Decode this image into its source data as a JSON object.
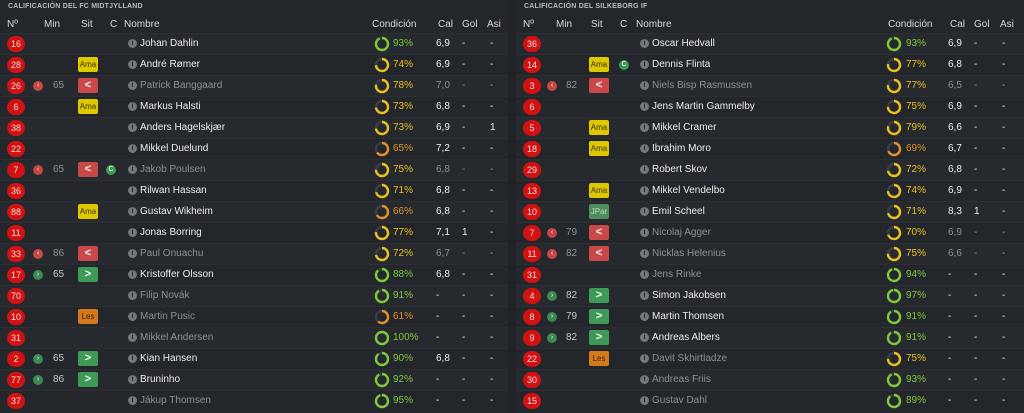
{
  "headers": {
    "num": "Nº",
    "min": "Min",
    "sit": "Sit",
    "c": "C",
    "name": "Nombre",
    "cond": "Condición",
    "cal": "Cal",
    "gol": "Gol",
    "asi": "Asi"
  },
  "colors": {
    "green": "#7ec83c",
    "yellow": "#e8c020",
    "orange": "#e09030",
    "red": "#d11212"
  },
  "teams": [
    {
      "title": "CALIFICACIÓN DEL FC MIDTJYLLAND",
      "players": [
        {
          "num": "16",
          "name": "Johan Dahlin",
          "cond": "93%",
          "level": 93,
          "cal": "6,9",
          "gol": "-",
          "asi": "-",
          "row": "normal"
        },
        {
          "num": "28",
          "sit": "Ama",
          "sit_type": "ama",
          "name": "André Rømer",
          "cond": "74%",
          "level": 74,
          "cal": "6,9",
          "gol": "-",
          "asi": "-",
          "row": "normal"
        },
        {
          "num": "26",
          "sub": "out",
          "min": "65",
          "sit": "<",
          "sit_type": "out",
          "name": "Patrick Banggaard",
          "cond": "78%",
          "level": 78,
          "cal": "7,0",
          "gol": "-",
          "asi": "-",
          "row": "sub"
        },
        {
          "num": "6",
          "sit": "Ama",
          "sit_type": "ama",
          "name": "Markus Halsti",
          "cond": "73%",
          "level": 73,
          "cal": "6,8",
          "gol": "-",
          "asi": "-",
          "row": "normal"
        },
        {
          "num": "38",
          "name": "Anders Hagelskjær",
          "cond": "73%",
          "level": 73,
          "cal": "6,9",
          "gol": "-",
          "asi": "1",
          "row": "normal"
        },
        {
          "num": "22",
          "name": "Mikkel Duelund",
          "cond": "65%",
          "level": 65,
          "cal": "7,2",
          "gol": "-",
          "asi": "-",
          "row": "normal"
        },
        {
          "num": "7",
          "sub": "out",
          "min": "65",
          "sit": "<",
          "sit_type": "out",
          "captain": "C",
          "name": "Jakob Poulsen",
          "cond": "75%",
          "level": 75,
          "cal": "6,8",
          "gol": "-",
          "asi": "-",
          "row": "sub"
        },
        {
          "num": "36",
          "name": "Rilwan Hassan",
          "cond": "71%",
          "level": 71,
          "cal": "6,8",
          "gol": "-",
          "asi": "-",
          "row": "normal"
        },
        {
          "num": "88",
          "sit": "Ama",
          "sit_type": "ama",
          "name": "Gustav Wikheim",
          "cond": "66%",
          "level": 66,
          "cal": "6,8",
          "gol": "-",
          "asi": "-",
          "row": "normal"
        },
        {
          "num": "11",
          "name": "Jonas Borring",
          "cond": "77%",
          "level": 77,
          "cal": "7,1",
          "gol": "1",
          "asi": "-",
          "row": "normal"
        },
        {
          "num": "33",
          "sub": "out",
          "min": "86",
          "sit": "<",
          "sit_type": "out",
          "name": "Paul Onuachu",
          "cond": "72%",
          "level": 72,
          "cal": "6,7",
          "gol": "-",
          "asi": "-",
          "row": "sub"
        },
        {
          "num": "17",
          "sub": "in",
          "min": "65",
          "sit": ">",
          "sit_type": "in",
          "name": "Kristoffer Olsson",
          "cond": "88%",
          "level": 88,
          "cal": "6,8",
          "gol": "-",
          "asi": "-",
          "row": "normal"
        },
        {
          "num": "70",
          "name": "Filip Novák",
          "cond": "91%",
          "level": 91,
          "cal": "-",
          "gol": "-",
          "asi": "-",
          "row": "bench"
        },
        {
          "num": "10",
          "sit": "Les",
          "sit_type": "les",
          "name": "Martin Pusic",
          "cond": "61%",
          "level": 61,
          "cal": "-",
          "gol": "-",
          "asi": "-",
          "row": "bench"
        },
        {
          "num": "31",
          "name": "Mikkel Andersen",
          "cond": "100%",
          "level": 100,
          "cal": "-",
          "gol": "-",
          "asi": "-",
          "row": "bench"
        },
        {
          "num": "2",
          "sub": "in",
          "min": "65",
          "sit": ">",
          "sit_type": "in",
          "name": "Kian Hansen",
          "cond": "90%",
          "level": 90,
          "cal": "6,8",
          "gol": "-",
          "asi": "-",
          "row": "normal"
        },
        {
          "num": "77",
          "sub": "in",
          "min": "86",
          "sit": ">",
          "sit_type": "in",
          "name": "Bruninho",
          "cond": "92%",
          "level": 92,
          "cal": "-",
          "gol": "-",
          "asi": "-",
          "row": "normal"
        },
        {
          "num": "37",
          "name": "Jákup Thomsen",
          "cond": "95%",
          "level": 95,
          "cal": "-",
          "gol": "-",
          "asi": "-",
          "row": "bench"
        }
      ]
    },
    {
      "title": "CALIFICACIÓN DEL SILKEBORG IF",
      "players": [
        {
          "num": "36",
          "name": "Oscar Hedvall",
          "cond": "93%",
          "level": 93,
          "cal": "6,9",
          "gol": "-",
          "asi": "-",
          "row": "normal"
        },
        {
          "num": "14",
          "sit": "Ama",
          "sit_type": "ama",
          "captain": "C",
          "name": "Dennis Flinta",
          "cond": "77%",
          "level": 77,
          "cal": "6,8",
          "gol": "-",
          "asi": "-",
          "row": "normal"
        },
        {
          "num": "3",
          "sub": "out",
          "min": "82",
          "sit": "<",
          "sit_type": "out",
          "name": "Niels Bisp Rasmussen",
          "cond": "77%",
          "level": 77,
          "cal": "6,5",
          "gol": "-",
          "asi": "-",
          "row": "sub"
        },
        {
          "num": "6",
          "name": "Jens Martin Gammelby",
          "cond": "75%",
          "level": 75,
          "cal": "6,9",
          "gol": "-",
          "asi": "-",
          "row": "normal"
        },
        {
          "num": "5",
          "sit": "Ama",
          "sit_type": "ama",
          "name": "Mikkel Cramer",
          "cond": "79%",
          "level": 79,
          "cal": "6,6",
          "gol": "-",
          "asi": "-",
          "row": "normal"
        },
        {
          "num": "18",
          "sit": "Ama",
          "sit_type": "ama",
          "name": "Ibrahim Moro",
          "cond": "69%",
          "level": 69,
          "cal": "6,7",
          "gol": "-",
          "asi": "-",
          "row": "normal"
        },
        {
          "num": "29",
          "name": "Robert Skov",
          "cond": "72%",
          "level": 72,
          "cal": "6,8",
          "gol": "-",
          "asi": "-",
          "row": "normal"
        },
        {
          "num": "13",
          "sit": "Ama",
          "sit_type": "ama",
          "name": "Mikkel Vendelbo",
          "cond": "74%",
          "level": 74,
          "cal": "6,9",
          "gol": "-",
          "asi": "-",
          "row": "normal"
        },
        {
          "num": "10",
          "sit": "JPar",
          "sit_type": "jpar",
          "name": "Emil Scheel",
          "cond": "71%",
          "level": 71,
          "cal": "8,3",
          "gol": "1",
          "asi": "-",
          "row": "normal"
        },
        {
          "num": "7",
          "sub": "out",
          "min": "79",
          "sit": "<",
          "sit_type": "out",
          "name": "Nicolaj Agger",
          "cond": "70%",
          "level": 70,
          "cal": "6,9",
          "gol": "-",
          "asi": "-",
          "row": "sub"
        },
        {
          "num": "11",
          "sub": "out",
          "min": "82",
          "sit": "<",
          "sit_type": "out",
          "name": "Nicklas Helenius",
          "cond": "75%",
          "level": 75,
          "cal": "6,6",
          "gol": "-",
          "asi": "-",
          "row": "sub"
        },
        {
          "num": "31",
          "name": "Jens Rinke",
          "cond": "94%",
          "level": 94,
          "cal": "-",
          "gol": "-",
          "asi": "-",
          "row": "bench"
        },
        {
          "num": "4",
          "sub": "in",
          "min": "82",
          "sit": ">",
          "sit_type": "in",
          "name": "Simon Jakobsen",
          "cond": "97%",
          "level": 97,
          "cal": "-",
          "gol": "-",
          "asi": "-",
          "row": "normal"
        },
        {
          "num": "8",
          "sub": "in",
          "min": "79",
          "sit": ">",
          "sit_type": "in",
          "name": "Martin Thomsen",
          "cond": "91%",
          "level": 91,
          "cal": "-",
          "gol": "-",
          "asi": "-",
          "row": "normal"
        },
        {
          "num": "9",
          "sub": "in",
          "min": "82",
          "sit": ">",
          "sit_type": "in",
          "name": "Andreas Albers",
          "cond": "91%",
          "level": 91,
          "cal": "-",
          "gol": "-",
          "asi": "-",
          "row": "normal"
        },
        {
          "num": "22",
          "sit": "Les",
          "sit_type": "les",
          "name": "Davit Skhirtladze",
          "cond": "75%",
          "level": 75,
          "cal": "-",
          "gol": "-",
          "asi": "-",
          "row": "bench"
        },
        {
          "num": "30",
          "name": "Andreas Friis",
          "cond": "93%",
          "level": 93,
          "cal": "-",
          "gol": "-",
          "asi": "-",
          "row": "bench"
        },
        {
          "num": "15",
          "name": "Gustav Dahl",
          "cond": "89%",
          "level": 89,
          "cal": "-",
          "gol": "-",
          "asi": "-",
          "row": "bench"
        }
      ]
    }
  ]
}
